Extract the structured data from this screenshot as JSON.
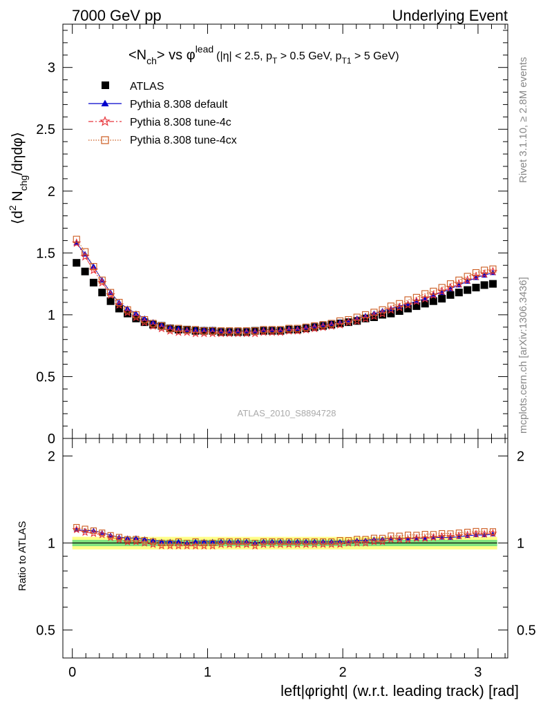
{
  "header": {
    "left": "7000 GeV pp",
    "right": "Underlying Event"
  },
  "side": {
    "rivet": "Rivet 3.1.10, ≥ 2.8M events",
    "mcplots": "mcplots.cern.ch [arXiv:1306.3436]"
  },
  "chart_data": {
    "type": "scatter",
    "title": {
      "main": "<N",
      "main_sub": "ch",
      "vs": "> vs φ",
      "vs_sup": "lead",
      "cuts_a": "(|η| < 2.5, p",
      "cuts_a_sub": "T",
      "cuts_b": " > 0.5 GeV, p",
      "cuts_b_sub": "T1",
      "cuts_c": " > 5 GeV)"
    },
    "ylabel": {
      "a": "⟨d",
      "a_sup": "2",
      "b": " N",
      "b_sub": "chg",
      "c": "/dηdφ⟩"
    },
    "ratio_ylabel": "Ratio to ATLAS",
    "xlabel": "left|φright| (w.r.t. leading track) [rad]",
    "analysis_id": "ATLAS_2010_S8894728",
    "xlim": [
      -0.07,
      3.22
    ],
    "ylim": [
      0,
      3.35
    ],
    "ratio_ylim": [
      0.4,
      2.3
    ],
    "x_ticks": [
      "0",
      "1",
      "2",
      "3"
    ],
    "y_ticks": [
      "0",
      "0.5",
      "1",
      "1.5",
      "2",
      "2.5",
      "3"
    ],
    "ratio_y_ticks": [
      "0.5",
      "1",
      "2"
    ],
    "x": [
      0.031,
      0.094,
      0.157,
      0.22,
      0.283,
      0.346,
      0.408,
      0.471,
      0.534,
      0.597,
      0.66,
      0.723,
      0.785,
      0.848,
      0.911,
      0.974,
      1.037,
      1.1,
      1.162,
      1.225,
      1.288,
      1.351,
      1.414,
      1.477,
      1.539,
      1.602,
      1.665,
      1.728,
      1.791,
      1.854,
      1.916,
      1.979,
      2.042,
      2.105,
      2.168,
      2.231,
      2.293,
      2.356,
      2.419,
      2.482,
      2.545,
      2.608,
      2.67,
      2.733,
      2.796,
      2.859,
      2.922,
      2.985,
      3.047,
      3.11
    ],
    "series": [
      {
        "name": "ATLAS",
        "color": "#000000",
        "marker": "square-filled",
        "values": [
          1.42,
          1.35,
          1.26,
          1.18,
          1.11,
          1.05,
          1.01,
          0.97,
          0.94,
          0.92,
          0.91,
          0.89,
          0.88,
          0.88,
          0.87,
          0.87,
          0.87,
          0.86,
          0.86,
          0.86,
          0.86,
          0.87,
          0.87,
          0.87,
          0.87,
          0.88,
          0.88,
          0.89,
          0.9,
          0.91,
          0.92,
          0.93,
          0.94,
          0.95,
          0.97,
          0.98,
          1.0,
          1.01,
          1.03,
          1.05,
          1.07,
          1.09,
          1.11,
          1.13,
          1.16,
          1.18,
          1.2,
          1.22,
          1.24,
          1.25
        ]
      },
      {
        "name": "Pythia 8.308 default",
        "color": "#0000cc",
        "marker": "triangle-filled",
        "line": "solid",
        "values": [
          1.58,
          1.49,
          1.39,
          1.28,
          1.18,
          1.1,
          1.05,
          1.01,
          0.97,
          0.94,
          0.92,
          0.9,
          0.89,
          0.88,
          0.88,
          0.88,
          0.88,
          0.87,
          0.87,
          0.87,
          0.87,
          0.87,
          0.88,
          0.88,
          0.88,
          0.89,
          0.89,
          0.9,
          0.91,
          0.92,
          0.93,
          0.94,
          0.95,
          0.97,
          0.99,
          1.01,
          1.03,
          1.05,
          1.07,
          1.09,
          1.11,
          1.13,
          1.16,
          1.18,
          1.21,
          1.24,
          1.27,
          1.3,
          1.32,
          1.34
        ]
      },
      {
        "name": "Pythia 8.308 tune-4c",
        "color": "#e8343a",
        "marker": "star-open",
        "line": "dashdot",
        "values": [
          1.58,
          1.47,
          1.36,
          1.26,
          1.16,
          1.08,
          1.02,
          0.98,
          0.94,
          0.91,
          0.89,
          0.87,
          0.86,
          0.86,
          0.85,
          0.85,
          0.85,
          0.85,
          0.85,
          0.85,
          0.85,
          0.85,
          0.86,
          0.86,
          0.86,
          0.87,
          0.87,
          0.88,
          0.89,
          0.9,
          0.91,
          0.92,
          0.94,
          0.95,
          0.97,
          0.99,
          1.01,
          1.04,
          1.06,
          1.08,
          1.11,
          1.13,
          1.16,
          1.19,
          1.22,
          1.25,
          1.28,
          1.31,
          1.33,
          1.35
        ]
      },
      {
        "name": "Pythia 8.308 tune-4cx",
        "color": "#cc5a1e",
        "marker": "square-open",
        "line": "dotted",
        "values": [
          1.61,
          1.51,
          1.39,
          1.28,
          1.18,
          1.1,
          1.04,
          1.0,
          0.96,
          0.93,
          0.91,
          0.89,
          0.89,
          0.88,
          0.88,
          0.87,
          0.87,
          0.87,
          0.87,
          0.87,
          0.87,
          0.87,
          0.88,
          0.88,
          0.88,
          0.89,
          0.89,
          0.9,
          0.91,
          0.92,
          0.93,
          0.95,
          0.96,
          0.98,
          1.0,
          1.02,
          1.04,
          1.07,
          1.09,
          1.12,
          1.14,
          1.17,
          1.19,
          1.22,
          1.25,
          1.28,
          1.31,
          1.34,
          1.36,
          1.37
        ]
      }
    ],
    "ratio_band": {
      "inner_color": "#7fe27f",
      "outer_color": "#ffff88",
      "inner_halfwidth": 0.025,
      "outer_halfwidth": 0.05
    }
  }
}
